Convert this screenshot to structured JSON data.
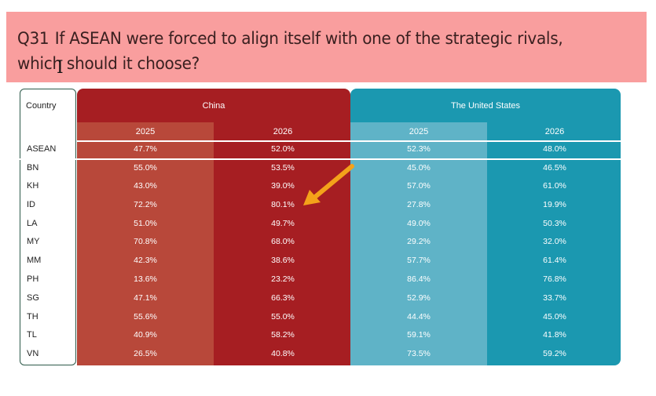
{
  "question": {
    "number": "Q31",
    "text": "If ASEAN were forced to align itself with one of the strategic rivals, which should it choose?"
  },
  "table": {
    "country_header": "Country",
    "groups": [
      {
        "label": "China",
        "color": "#a61e22"
      },
      {
        "label": "The United States",
        "color": "#1b98b0"
      }
    ],
    "years": [
      "2025",
      "2026",
      "2025",
      "2026"
    ],
    "rows": [
      {
        "country": "ASEAN",
        "values": [
          "47.7%",
          "52.0%",
          "52.3%",
          "48.0%"
        ]
      },
      {
        "country": "BN",
        "values": [
          "55.0%",
          "53.5%",
          "45.0%",
          "46.5%"
        ]
      },
      {
        "country": "KH",
        "values": [
          "43.0%",
          "39.0%",
          "57.0%",
          "61.0%"
        ]
      },
      {
        "country": "ID",
        "values": [
          "72.2%",
          "80.1%",
          "27.8%",
          "19.9%"
        ]
      },
      {
        "country": "LA",
        "values": [
          "51.0%",
          "49.7%",
          "49.0%",
          "50.3%"
        ]
      },
      {
        "country": "MY",
        "values": [
          "70.8%",
          "68.0%",
          "29.2%",
          "32.0%"
        ]
      },
      {
        "country": "MM",
        "values": [
          "42.3%",
          "38.6%",
          "57.7%",
          "61.4%"
        ]
      },
      {
        "country": "PH",
        "values": [
          "13.6%",
          "23.2%",
          "86.4%",
          "76.8%"
        ]
      },
      {
        "country": "SG",
        "values": [
          "47.1%",
          "66.3%",
          "52.9%",
          "33.7%"
        ]
      },
      {
        "country": "TH",
        "values": [
          "55.6%",
          "55.0%",
          "44.4%",
          "45.0%"
        ]
      },
      {
        "country": "TL",
        "values": [
          "40.9%",
          "58.2%",
          "59.1%",
          "41.8%"
        ]
      },
      {
        "country": "VN",
        "values": [
          "26.5%",
          "40.8%",
          "73.5%",
          "59.2%"
        ]
      }
    ]
  },
  "annotation": {
    "icon": "arrow-icon",
    "color": "#f4a21a"
  }
}
